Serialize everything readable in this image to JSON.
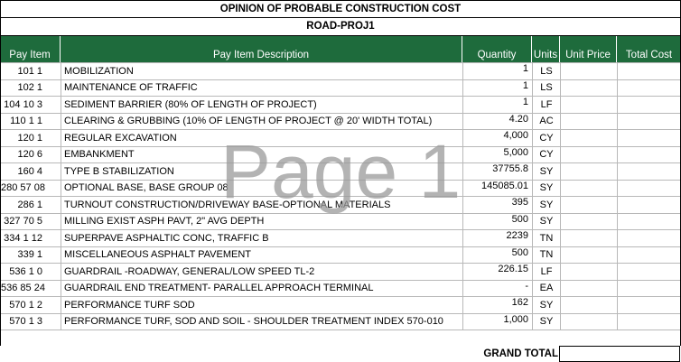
{
  "title": "OPINION OF PROBABLE CONSTRUCTION COST",
  "project": "ROAD-PROJ1",
  "watermark": "Page 1",
  "headers": {
    "pay_item_no": "Pay Item No.",
    "description": "Pay Item Description",
    "quantity": "Quantity",
    "units": "Units",
    "unit_price": "Unit Price",
    "total_cost": "Total Cost"
  },
  "rows": [
    {
      "no": "101 1",
      "desc": "MOBILIZATION",
      "qty": "1",
      "unit": "LS"
    },
    {
      "no": "102 1",
      "desc": "MAINTENANCE OF TRAFFIC",
      "qty": "1",
      "unit": "LS"
    },
    {
      "no": "104 10 3",
      "desc": "SEDIMENT BARRIER (80% OF LENGTH OF PROJECT)",
      "qty": "1",
      "unit": "LF"
    },
    {
      "no": "110 1 1",
      "desc": "CLEARING & GRUBBING  (10% OF LENGTH OF PROJECT @ 20' WIDTH TOTAL)",
      "qty": "4.20",
      "unit": "AC"
    },
    {
      "no": "120 1",
      "desc": "REGULAR EXCAVATION",
      "qty": "4,000",
      "unit": "CY"
    },
    {
      "no": "120 6",
      "desc": "EMBANKMENT",
      "qty": "5,000",
      "unit": "CY"
    },
    {
      "no": "160 4",
      "desc": "TYPE B STABILIZATION",
      "qty": "37755.8",
      "unit": "SY"
    },
    {
      "no": "280 57 08",
      "desc": "OPTIONAL BASE, BASE GROUP 08",
      "qty": "145085.01",
      "unit": "SY"
    },
    {
      "no": "286  1",
      "desc": "TURNOUT CONSTRUCTION/DRIVEWAY BASE-OPTIONAL MATERIALS",
      "qty": "395",
      "unit": "SY"
    },
    {
      "no": "327 70 5",
      "desc": "MILLING EXIST ASPH PAVT, 2\" AVG DEPTH",
      "qty": "500",
      "unit": "SY"
    },
    {
      "no": "334 1 12",
      "desc": "SUPERPAVE ASPHALTIC CONC, TRAFFIC B",
      "qty": "2239",
      "unit": "TN"
    },
    {
      "no": "339 1",
      "desc": "MISCELLANEOUS ASPHALT PAVEMENT",
      "qty": "500",
      "unit": "TN"
    },
    {
      "no": "536 1 0",
      "desc": "GUARDRAIL -ROADWAY, GENERAL/LOW SPEED TL-2",
      "qty": "226.15",
      "unit": "LF"
    },
    {
      "no": "536 85 24",
      "desc": "GUARDRAIL END TREATMENT- PARALLEL APPROACH TERMINAL",
      "qty": "-",
      "unit": "EA"
    },
    {
      "no": "570 1 2",
      "desc": "PERFORMANCE TURF SOD",
      "qty": "162",
      "unit": "SY"
    },
    {
      "no": "570 1 3",
      "desc": "PERFORMANCE TURF, SOD AND SOIL - SHOULDER TREATMENT INDEX 570-010",
      "qty": "1,000",
      "unit": "SY"
    }
  ],
  "grand_total_label": "GRAND TOTAL",
  "colors": {
    "header_bg": "#1e6b3c",
    "header_text": "#ffffff",
    "watermark": "#9a9a9a"
  }
}
